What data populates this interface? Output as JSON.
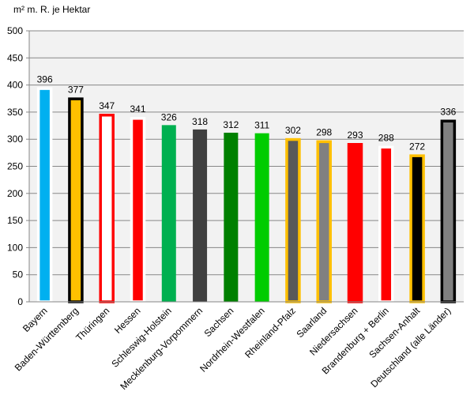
{
  "chart_data": {
    "type": "bar",
    "ylabel": "m² m. R. je Hektar",
    "ylim": [
      0,
      500
    ],
    "yticks": [
      0,
      50,
      100,
      150,
      200,
      250,
      300,
      350,
      400,
      450,
      500
    ],
    "grid": true,
    "categories": [
      "Bayern",
      "Baden-Württemberg",
      "Thüringen",
      "Hessen",
      "Schleswig-Holstein",
      "Mecklenburg-Vorpommern",
      "Sachsen",
      "Nordrhein-Westfalen",
      "Rheinland-Pfalz",
      "Saarland",
      "Niedersachsen",
      "Brandenburg + Berlin",
      "Sachsen-Anhalt",
      "Deutschland (alle Länder)"
    ],
    "values": [
      396,
      377,
      347,
      341,
      326,
      318,
      312,
      311,
      302,
      298,
      293,
      288,
      272,
      336
    ],
    "fill_colors": [
      "#00b0f0",
      "#ffc000",
      "#ffffff",
      "#ff0000",
      "#00b050",
      "#404040",
      "#008000",
      "#00cc00",
      "#595959",
      "#808080",
      "#ff0000",
      "#ff0000",
      "#000000",
      "#808080"
    ],
    "border_colors": [
      "#ffffff",
      "#000000",
      "#ff0000",
      "#ffffff",
      null,
      null,
      null,
      null,
      "#ffc000",
      "#ffc000",
      "#ff0000",
      "#ffffff",
      "#ffc000",
      "#000000"
    ]
  }
}
